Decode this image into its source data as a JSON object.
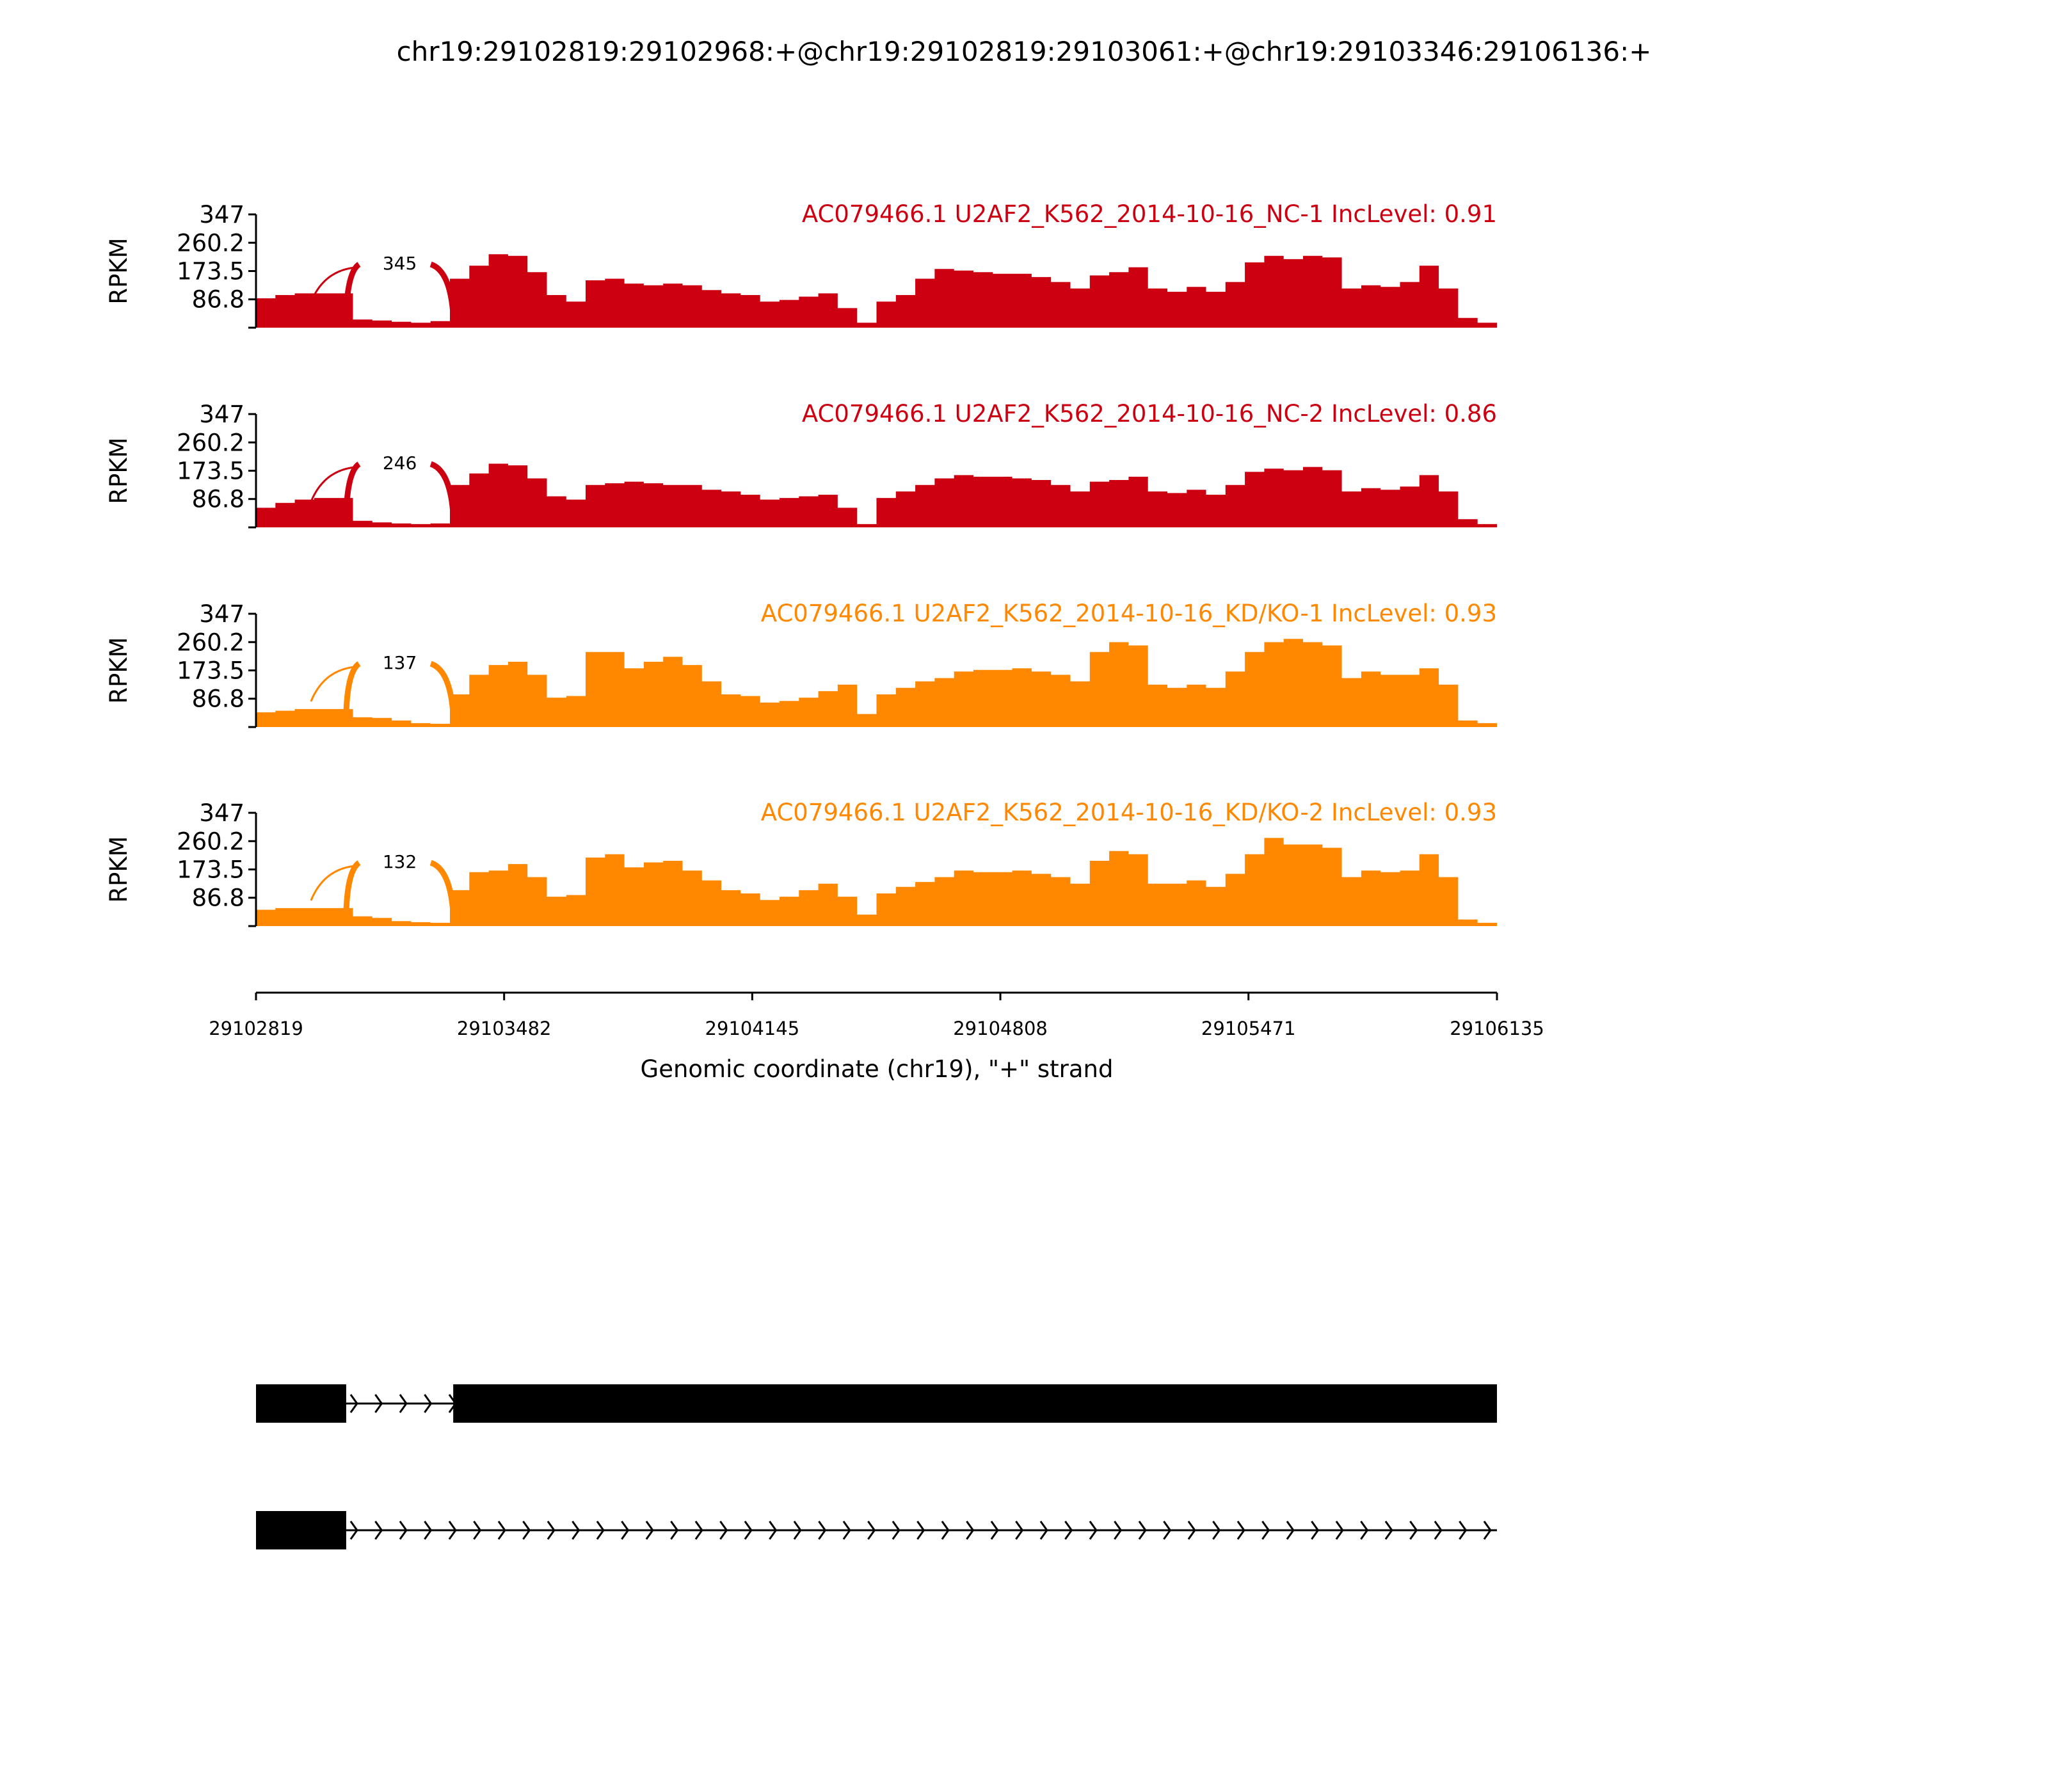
{
  "chart_data": {
    "type": "area",
    "title": "chr19:29102819:29102968:+@chr19:29102819:29103061:+@chr19:29103346:29106136:+",
    "xlabel": "Genomic coordinate (chr19), \"+\" strand",
    "ylabel": "RPKM",
    "xlim": [
      29102819,
      29106135
    ],
    "ylim": [
      0,
      347
    ],
    "x_ticks": [
      "29102819",
      "29103482",
      "29104145",
      "29104808",
      "29105471",
      "29106135"
    ],
    "x_tick_values": [
      29102819,
      29103482,
      29104145,
      29104808,
      29105471,
      29106135
    ],
    "y_ticks": [
      "347",
      "260.2",
      "173.5",
      "86.8"
    ],
    "y_tick_values": [
      347,
      260.2,
      173.5,
      86.8
    ],
    "bin_count": 64,
    "junction": {
      "start": 29103060,
      "end": 29103346
    },
    "series": [
      {
        "name": "AC079466.1 U2AF2_K562_2014-10-16_NC-1 IncLevel: 0.91",
        "color": "#cc0011",
        "junction_count": "345",
        "values": [
          90,
          100,
          105,
          105,
          105,
          25,
          22,
          18,
          15,
          20,
          150,
          190,
          225,
          220,
          170,
          100,
          80,
          145,
          150,
          135,
          130,
          135,
          130,
          115,
          105,
          100,
          80,
          85,
          95,
          105,
          60,
          15,
          80,
          100,
          150,
          180,
          175,
          170,
          165,
          165,
          155,
          140,
          120,
          160,
          170,
          185,
          120,
          110,
          125,
          110,
          140,
          200,
          220,
          210,
          220,
          215,
          120,
          130,
          125,
          140,
          190,
          120,
          30,
          15
        ]
      },
      {
        "name": "AC079466.1 U2AF2_K562_2014-10-16_NC-2 IncLevel: 0.86",
        "color": "#cc0011",
        "junction_count": "246",
        "values": [
          60,
          75,
          85,
          90,
          90,
          20,
          15,
          12,
          10,
          12,
          130,
          165,
          195,
          190,
          150,
          95,
          85,
          130,
          135,
          140,
          135,
          130,
          130,
          115,
          110,
          100,
          85,
          90,
          95,
          100,
          60,
          10,
          90,
          110,
          130,
          150,
          160,
          155,
          155,
          150,
          145,
          130,
          110,
          140,
          145,
          155,
          110,
          105,
          115,
          100,
          130,
          170,
          180,
          175,
          185,
          175,
          110,
          120,
          115,
          125,
          160,
          110,
          25,
          10
        ]
      },
      {
        "name": "AC079466.1 U2AF2_K562_2014-10-16_KD/KO-1 IncLevel: 0.93",
        "color": "#ff8800",
        "junction_count": "137",
        "values": [
          45,
          50,
          55,
          55,
          55,
          30,
          28,
          20,
          12,
          10,
          100,
          160,
          190,
          200,
          160,
          90,
          95,
          230,
          230,
          180,
          200,
          215,
          190,
          140,
          100,
          95,
          75,
          80,
          90,
          110,
          130,
          40,
          100,
          120,
          140,
          150,
          170,
          175,
          175,
          180,
          170,
          160,
          140,
          230,
          260,
          250,
          130,
          120,
          130,
          120,
          170,
          230,
          260,
          270,
          260,
          250,
          150,
          170,
          160,
          160,
          180,
          130,
          20,
          12
        ]
      },
      {
        "name": "AC079466.1 U2AF2_K562_2014-10-16_KD/KO-2 IncLevel: 0.93",
        "color": "#ff8800",
        "junction_count": "132",
        "values": [
          50,
          55,
          55,
          55,
          55,
          30,
          25,
          15,
          12,
          10,
          110,
          165,
          170,
          190,
          150,
          90,
          95,
          210,
          220,
          180,
          195,
          200,
          170,
          140,
          110,
          100,
          80,
          90,
          110,
          130,
          90,
          35,
          100,
          120,
          135,
          150,
          170,
          165,
          165,
          170,
          160,
          150,
          130,
          200,
          230,
          220,
          130,
          130,
          140,
          120,
          160,
          220,
          270,
          250,
          250,
          240,
          150,
          170,
          165,
          170,
          220,
          150,
          20,
          10
        ]
      }
    ],
    "gene_models": [
      {
        "exons": [
          [
            29102819,
            29103060
          ],
          [
            29103346,
            29106135
          ]
        ]
      },
      {
        "exons": [
          [
            29102819,
            29103060
          ]
        ],
        "intron_end": 29106135
      }
    ]
  }
}
